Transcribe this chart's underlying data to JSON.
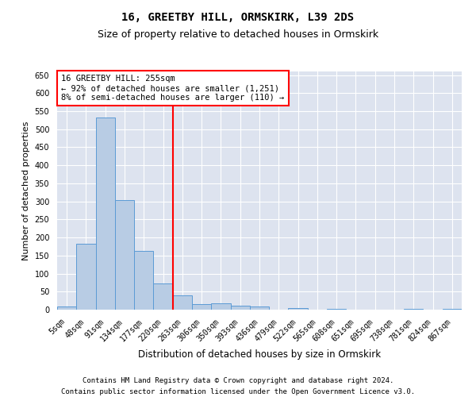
{
  "title1": "16, GREETBY HILL, ORMSKIRK, L39 2DS",
  "title2": "Size of property relative to detached houses in Ormskirk",
  "xlabel": "Distribution of detached houses by size in Ormskirk",
  "ylabel": "Number of detached properties",
  "categories": [
    "5sqm",
    "48sqm",
    "91sqm",
    "134sqm",
    "177sqm",
    "220sqm",
    "263sqm",
    "306sqm",
    "350sqm",
    "393sqm",
    "436sqm",
    "479sqm",
    "522sqm",
    "565sqm",
    "608sqm",
    "651sqm",
    "695sqm",
    "738sqm",
    "781sqm",
    "824sqm",
    "867sqm"
  ],
  "values": [
    8,
    183,
    533,
    304,
    163,
    73,
    40,
    15,
    18,
    10,
    8,
    0,
    5,
    0,
    2,
    0,
    0,
    0,
    2,
    0,
    2
  ],
  "bar_color": "#b8cce4",
  "bar_edge_color": "#5b9bd5",
  "vline_x_index": 6,
  "marker_label": "16 GREETBY HILL: 255sqm",
  "annotation_line1": "← 92% of detached houses are smaller (1,251)",
  "annotation_line2": "8% of semi-detached houses are larger (110) →",
  "annotation_box_color": "white",
  "annotation_box_edge": "red",
  "vline_color": "red",
  "ylim": [
    0,
    660
  ],
  "yticks": [
    0,
    50,
    100,
    150,
    200,
    250,
    300,
    350,
    400,
    450,
    500,
    550,
    600,
    650
  ],
  "background_color": "#dde3ef",
  "footer1": "Contains HM Land Registry data © Crown copyright and database right 2024.",
  "footer2": "Contains public sector information licensed under the Open Government Licence v3.0.",
  "title_fontsize": 10,
  "subtitle_fontsize": 9,
  "tick_fontsize": 7,
  "xlabel_fontsize": 8.5,
  "ylabel_fontsize": 8,
  "annotation_fontsize": 7.5,
  "footer_fontsize": 6.5
}
